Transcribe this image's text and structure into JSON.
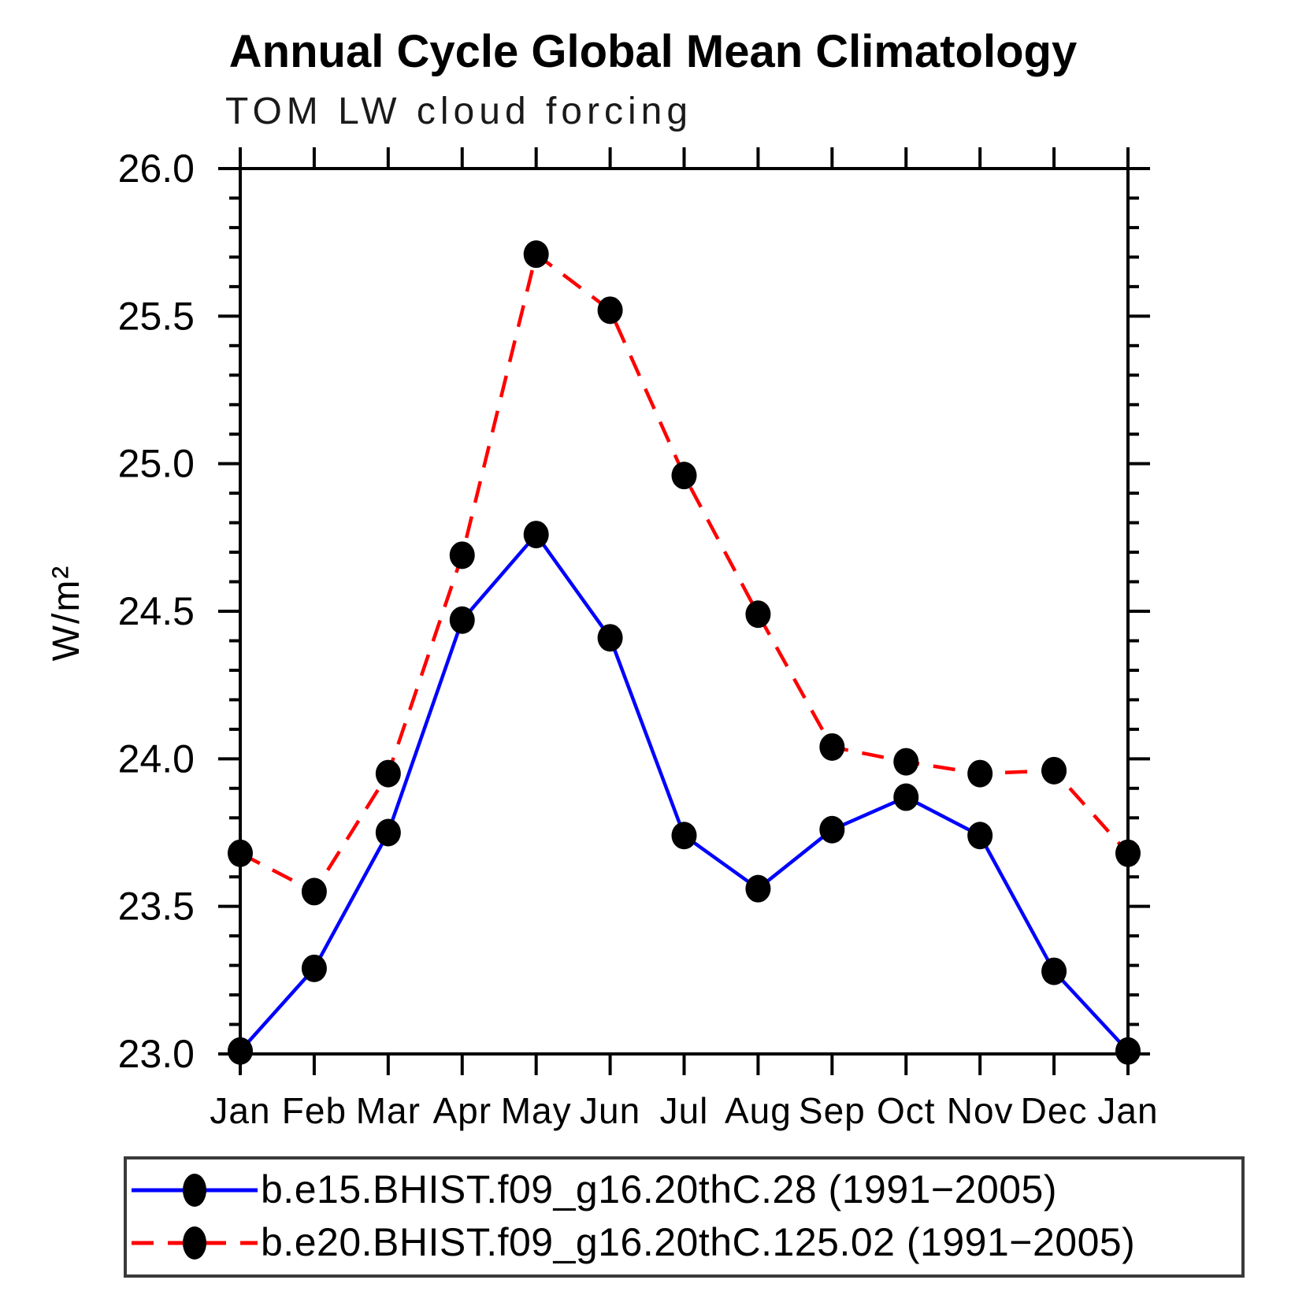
{
  "chart_data": {
    "type": "line",
    "title": "Annual Cycle Global Mean Climatology",
    "subtitle": "TOM LW cloud forcing",
    "ylabel": "W/m²",
    "xlabel": "",
    "x_categories": [
      "Jan",
      "Feb",
      "Mar",
      "Apr",
      "May",
      "Jun",
      "Jul",
      "Aug",
      "Sep",
      "Oct",
      "Nov",
      "Dec",
      "Jan"
    ],
    "ylim": [
      23.0,
      26.0
    ],
    "ytick_values": [
      23.0,
      23.5,
      24.0,
      24.5,
      25.0,
      25.5,
      26.0
    ],
    "ytick_labels": [
      "23.0",
      "23.5",
      "24.0",
      "24.5",
      "25.0",
      "25.5",
      "26.0"
    ],
    "yminor_step": 0.1,
    "grid": false,
    "legend_position": "bottom-box",
    "axis_color": "#000000",
    "marker_color": "#000000",
    "legend_border_color": "#3a3a3a",
    "series": [
      {
        "name": "b.e15.BHIST.f09_g16.20thC.28 (1991−2005)",
        "color": "#0000ff",
        "line_style": "solid",
        "marker": "filled-circle",
        "values": [
          23.01,
          23.29,
          23.75,
          24.47,
          24.76,
          24.41,
          23.74,
          23.56,
          23.76,
          23.87,
          23.74,
          23.28,
          23.01
        ]
      },
      {
        "name": "b.e20.BHIST.f09_g16.20thC.125.02 (1991−2005)",
        "color": "#ff0000",
        "line_style": "dashed",
        "marker": "filled-circle",
        "values": [
          23.68,
          23.55,
          23.95,
          24.69,
          25.71,
          25.52,
          24.96,
          24.49,
          24.04,
          23.99,
          23.95,
          23.96,
          23.68
        ]
      }
    ]
  }
}
